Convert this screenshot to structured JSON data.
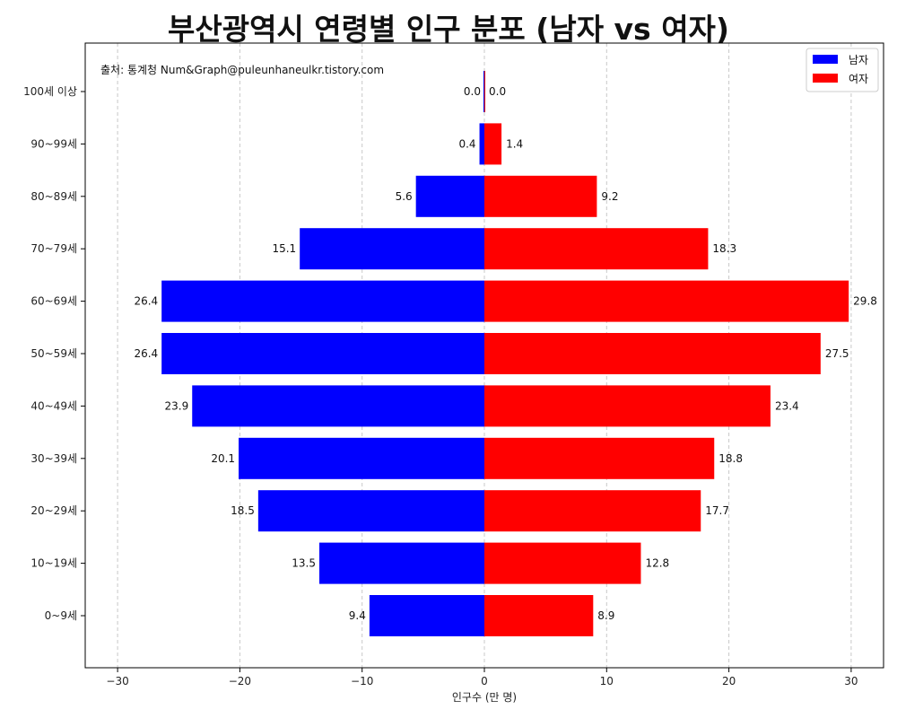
{
  "chart_data": {
    "type": "bar",
    "orientation": "horizontal",
    "title": "부산광역시 연령별 인구 분포 (남자 vs 여자)",
    "xlabel": "인구수 (만 명)",
    "ylabel": "",
    "source": "출처: 통계청 Num&Graph@puleunhaneulkr.tistory.com",
    "xlim": [
      -30,
      30
    ],
    "xticks": [
      -30,
      -20,
      -10,
      0,
      10,
      20,
      30
    ],
    "xtick_labels": [
      "−30",
      "−20",
      "−10",
      "0",
      "10",
      "20",
      "30"
    ],
    "grid": "x",
    "legend_position": "top-right",
    "categories": [
      "0~9세",
      "10~19세",
      "20~29세",
      "30~39세",
      "40~49세",
      "50~59세",
      "60~69세",
      "70~79세",
      "80~89세",
      "90~99세",
      "100세 이상"
    ],
    "series": [
      {
        "name": "남자",
        "color": "#0000ff",
        "values": [
          9.4,
          13.5,
          18.5,
          20.1,
          23.9,
          26.4,
          26.4,
          15.1,
          5.6,
          0.4,
          0.0
        ]
      },
      {
        "name": "여자",
        "color": "#ff0000",
        "values": [
          8.9,
          12.8,
          17.7,
          18.8,
          23.4,
          27.5,
          29.8,
          18.3,
          9.2,
          1.4,
          0.0
        ]
      }
    ]
  }
}
